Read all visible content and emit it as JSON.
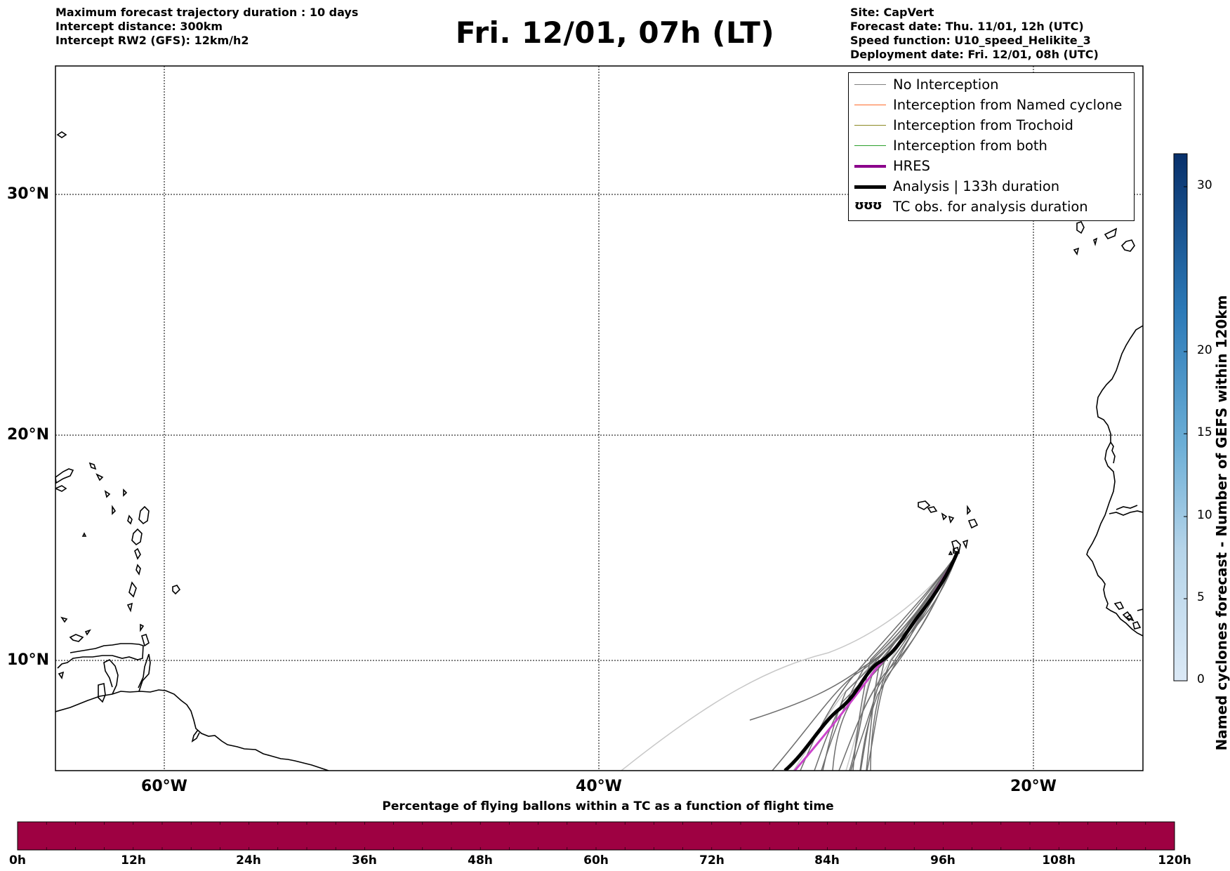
{
  "header": {
    "left_lines": [
      "Maximum forecast trajectory duration : 10 days",
      "Intercept distance: 300km",
      "Intercept RW2 (GFS):  12km/h2"
    ],
    "title": "Fri. 12/01, 07h (LT)",
    "right_lines": [
      "Site: CapVert",
      "Forecast date: Thu. 11/01, 12h (UTC)",
      "Speed function: U10_speed_Helikite_3",
      "Deployment date: Fri. 12/01, 08h (UTC)"
    ]
  },
  "map": {
    "lon_range": [
      -65,
      -15
    ],
    "lat_range": [
      5.3,
      34.5
    ],
    "lat_labels": [
      "30°N",
      "20°N",
      "10°N"
    ],
    "lon_labels": [
      "60°W",
      "40°W",
      "20°W"
    ],
    "launch_site": {
      "lon": -24.5,
      "lat": 14.8
    }
  },
  "legend": {
    "items": [
      {
        "label": "No Interception",
        "color": "#808080"
      },
      {
        "label": "Interception from Named cyclone",
        "color": "#ff6a2a"
      },
      {
        "label": "Interception from Trochoid",
        "color": "#8b8a24"
      },
      {
        "label": "Interception from both",
        "color": "#2ca02c"
      },
      {
        "label": "HRES",
        "color": "#8b008b"
      },
      {
        "label": "Analysis | 133h duration",
        "color": "#000000"
      },
      {
        "label": "TC obs. for analysis duration",
        "symbol": "ʊʊʊ"
      }
    ]
  },
  "colorbar_right": {
    "title": "Named cyclones forecast - Number of GEFS within 120km",
    "ticks": [
      "0",
      "5",
      "10",
      "15",
      "20",
      "30"
    ],
    "range": [
      0,
      32
    ],
    "colors": [
      "#dbe9f6",
      "#08306b"
    ]
  },
  "colorbar_bottom": {
    "title": "Percentage of flying ballons within a TC as a function of flight time",
    "ticks": [
      "0h",
      "12h",
      "24h",
      "36h",
      "48h",
      "60h",
      "72h",
      "84h",
      "96h",
      "108h",
      "120h"
    ],
    "fill_color": "#9e0142"
  }
}
